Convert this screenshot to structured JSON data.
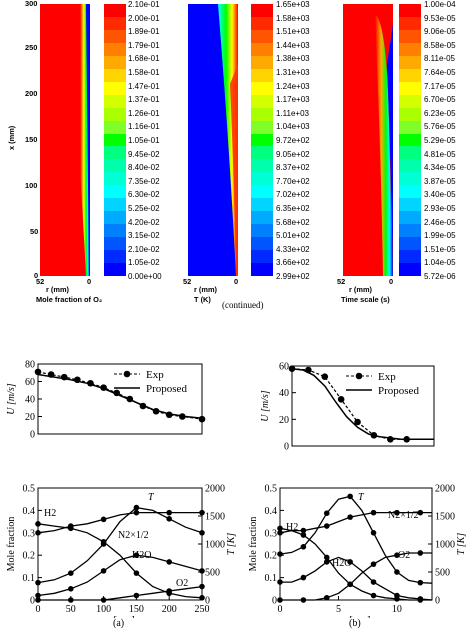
{
  "contour_panels": [
    {
      "name": "o2",
      "y_axis_label": "x (mm)",
      "y_ticks": [
        "300",
        "250",
        "200",
        "150",
        "100",
        "50",
        "0"
      ],
      "x_tick_left": "52",
      "x_tick_right": "0",
      "x_axis_label": "r (mm)",
      "caption": "Mole fraction of O₂",
      "colorbar": [
        "2.10e-01",
        "2.00e-01",
        "1.89e-01",
        "1.79e-01",
        "1.68e-01",
        "1.58e-01",
        "1.47e-01",
        "1.37e-01",
        "1.26e-01",
        "1.16e-01",
        "1.05e-01",
        "9.45e-02",
        "8.40e-02",
        "7.35e-02",
        "6.30e-02",
        "5.25e-02",
        "4.20e-02",
        "3.15e-02",
        "2.10e-02",
        "1.05e-02",
        "0.00e+00"
      ]
    },
    {
      "name": "temperature",
      "x_tick_left": "52",
      "x_tick_right": "0",
      "x_axis_label": "r (mm)",
      "caption": "T (K)",
      "colorbar": [
        "1.65e+03",
        "1.58e+03",
        "1.51e+03",
        "1.44e+03",
        "1.38e+03",
        "1.31e+03",
        "1.24e+03",
        "1.17e+03",
        "1.11e+03",
        "1.04e+03",
        "9.72e+02",
        "9.05e+02",
        "8.37e+02",
        "7.70e+02",
        "7.02e+02",
        "6.35e+02",
        "5.68e+02",
        "5.01e+02",
        "4.33e+02",
        "3.66e+02",
        "2.99e+02"
      ]
    },
    {
      "name": "time-scale",
      "x_tick_left": "52",
      "x_tick_right": "0",
      "x_axis_label": "r (mm)",
      "caption": "Time scale (s)",
      "colorbar": [
        "1.00e-04",
        "9.53e-05",
        "9.06e-05",
        "8.58e-05",
        "8.11e-05",
        "7.64e-05",
        "7.17e-05",
        "6.70e-05",
        "6.23e-05",
        "5.76e-05",
        "5.29e-05",
        "4.81e-05",
        "4.34e-05",
        "3.87e-05",
        "3.40e-05",
        "2.93e-05",
        "2.46e-05",
        "1.99e-05",
        "1.51e-05",
        "1.04e-05",
        "5.72e-06"
      ]
    }
  ],
  "colorbar_colors": [
    "#ff0000",
    "#ff2a00",
    "#ff5500",
    "#ff7f00",
    "#ffaa00",
    "#ffd400",
    "#ffff00",
    "#d4ff00",
    "#aaff00",
    "#7fff2a",
    "#00ff00",
    "#00ff7f",
    "#00ffaa",
    "#00ffd4",
    "#00ffff",
    "#00d4ff",
    "#00aaff",
    "#007fff",
    "#0055ff",
    "#002aff",
    "#0000ff"
  ],
  "continued": "(continued)",
  "chart_data": [
    {
      "id": "a-top",
      "type": "line",
      "xlim": [
        0,
        250
      ],
      "ylim": [
        0,
        80
      ],
      "ylabel": "U [m/s]",
      "y_ticks": [
        0,
        20,
        40,
        60,
        80
      ],
      "legend": [
        "Exp",
        "Proposed"
      ],
      "series": [
        {
          "name": "Exp",
          "x": [
            0,
            20,
            40,
            60,
            80,
            100,
            120,
            140,
            160,
            180,
            200,
            220,
            250
          ],
          "y": [
            71,
            68,
            65,
            62,
            58,
            53,
            47,
            40,
            32,
            26,
            22,
            20,
            17
          ]
        },
        {
          "name": "Proposed",
          "x": [
            0,
            25,
            50,
            75,
            100,
            125,
            150,
            175,
            200,
            225,
            250
          ],
          "y": [
            68,
            65,
            62,
            58,
            52,
            44,
            36,
            28,
            23,
            20,
            18
          ]
        }
      ]
    },
    {
      "id": "b-top",
      "type": "line",
      "xlim": [
        0,
        13
      ],
      "ylim": [
        0,
        60
      ],
      "ylabel": "U [m/s]",
      "y_ticks": [
        0,
        20,
        40,
        60
      ],
      "legend": [
        "Exp",
        "Proposed"
      ],
      "series": [
        {
          "name": "Exp",
          "x": [
            0,
            1.5,
            3,
            4.5,
            6,
            7.5,
            9,
            10.5
          ],
          "y": [
            58,
            57,
            52,
            35,
            18,
            8,
            5,
            5
          ]
        },
        {
          "name": "Proposed",
          "x": [
            0,
            1,
            2,
            3,
            4,
            5,
            6,
            7,
            8,
            9,
            10,
            11,
            12,
            13
          ],
          "y": [
            58,
            57,
            53,
            45,
            33,
            22,
            14,
            9,
            7,
            6,
            5,
            5,
            5,
            5
          ]
        }
      ]
    },
    {
      "id": "a-bottom",
      "type": "line",
      "xlim": [
        0,
        250
      ],
      "ylim": [
        0,
        0.5
      ],
      "y2lim": [
        0,
        2000
      ],
      "xlabel": "x [mm]",
      "ylabel": "Mole fraction",
      "y2label": "T [K]",
      "x_ticks": [
        0,
        50,
        100,
        150,
        200,
        250
      ],
      "y_ticks": [
        0,
        0.1,
        0.2,
        0.3,
        0.4,
        0.5
      ],
      "y2_ticks": [
        0,
        500,
        1000,
        1500,
        2000
      ],
      "species_labels": [
        "H2",
        "T",
        "N2×1/2",
        "H2O",
        "O2"
      ],
      "series": [
        {
          "name": "H2",
          "x": [
            0,
            25,
            50,
            75,
            100,
            125,
            150,
            175,
            200,
            225,
            250
          ],
          "y": [
            0.34,
            0.33,
            0.32,
            0.3,
            0.26,
            0.2,
            0.12,
            0.06,
            0.03,
            0.015,
            0.01
          ]
        },
        {
          "name": "T",
          "x": [
            0,
            25,
            50,
            75,
            100,
            125,
            150,
            175,
            200,
            225,
            250
          ],
          "y": [
            310,
            360,
            480,
            700,
            1000,
            1400,
            1650,
            1600,
            1450,
            1300,
            1200
          ]
        },
        {
          "name": "N2×1/2",
          "x": [
            0,
            25,
            50,
            75,
            100,
            125,
            150,
            175,
            200,
            225,
            250
          ],
          "y": [
            0.3,
            0.31,
            0.33,
            0.34,
            0.36,
            0.38,
            0.39,
            0.39,
            0.39,
            0.39,
            0.39
          ]
        },
        {
          "name": "H2O",
          "x": [
            0,
            25,
            50,
            75,
            100,
            125,
            150,
            175,
            200,
            225,
            250
          ],
          "y": [
            0.02,
            0.03,
            0.05,
            0.08,
            0.13,
            0.18,
            0.2,
            0.19,
            0.17,
            0.15,
            0.13
          ]
        },
        {
          "name": "O2",
          "x": [
            0,
            25,
            50,
            75,
            100,
            125,
            150,
            175,
            200,
            225,
            250
          ],
          "y": [
            0,
            0,
            0,
            0,
            0,
            0.01,
            0.02,
            0.03,
            0.04,
            0.05,
            0.06
          ]
        }
      ]
    },
    {
      "id": "b-bottom",
      "type": "line",
      "xlim": [
        0,
        13
      ],
      "ylim": [
        0,
        0.5
      ],
      "y2lim": [
        0,
        2000
      ],
      "xlabel": "r [mm]",
      "ylabel": "Mole fraction",
      "y2label": "T [K]",
      "x_ticks": [
        0,
        5,
        10
      ],
      "y_ticks": [
        0,
        0.1,
        0.2,
        0.3,
        0.4,
        0.5
      ],
      "y2_ticks": [
        0,
        500,
        1000,
        1500,
        2000
      ],
      "species_labels": [
        "H2",
        "T",
        "N2×1/2",
        "H2O",
        "O2"
      ],
      "series": [
        {
          "name": "H2",
          "x": [
            0,
            1,
            2,
            3,
            4,
            5,
            6,
            7,
            8,
            9,
            10,
            11,
            12,
            13
          ],
          "y": [
            0.32,
            0.31,
            0.29,
            0.25,
            0.19,
            0.12,
            0.07,
            0.04,
            0.02,
            0.01,
            0.005,
            0,
            0,
            0
          ]
        },
        {
          "name": "T",
          "x": [
            0,
            1,
            2,
            3,
            4,
            5,
            6,
            7,
            8,
            9,
            10,
            11,
            12,
            13
          ],
          "y": [
            820,
            850,
            950,
            1200,
            1550,
            1800,
            1850,
            1600,
            1200,
            800,
            500,
            350,
            310,
            300
          ]
        },
        {
          "name": "N2×1/2",
          "x": [
            0,
            1,
            2,
            3,
            4,
            5,
            6,
            7,
            8,
            9,
            10,
            11,
            12,
            13
          ],
          "y": [
            0.3,
            0.31,
            0.31,
            0.32,
            0.33,
            0.35,
            0.37,
            0.38,
            0.39,
            0.39,
            0.39,
            0.39,
            0.39,
            0.39
          ]
        },
        {
          "name": "H2O",
          "x": [
            0,
            1,
            2,
            3,
            4,
            5,
            6,
            7,
            8,
            9,
            10,
            11,
            12,
            13
          ],
          "y": [
            0.08,
            0.08,
            0.1,
            0.13,
            0.17,
            0.19,
            0.17,
            0.13,
            0.08,
            0.05,
            0.02,
            0.01,
            0.005,
            0
          ]
        },
        {
          "name": "O2",
          "x": [
            0,
            1,
            2,
            3,
            4,
            5,
            6,
            7,
            8,
            9,
            10,
            11,
            12,
            13
          ],
          "y": [
            0,
            0,
            0,
            0,
            0.01,
            0.03,
            0.07,
            0.12,
            0.16,
            0.19,
            0.2,
            0.21,
            0.21,
            0.21
          ]
        }
      ]
    }
  ],
  "subcaptions": [
    "(a)",
    "(b)"
  ]
}
